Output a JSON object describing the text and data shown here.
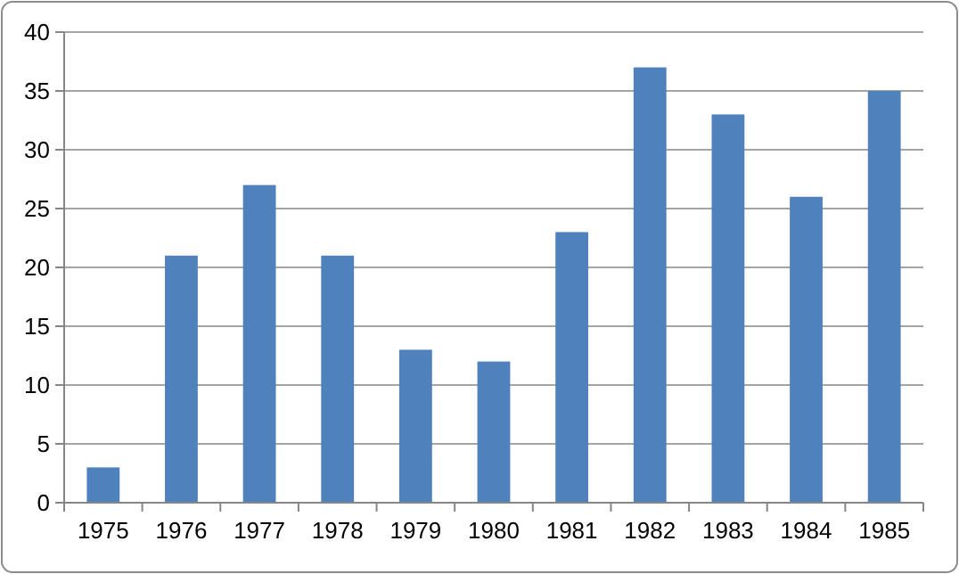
{
  "chart_data": {
    "type": "bar",
    "categories": [
      "1975",
      "1976",
      "1977",
      "1978",
      "1979",
      "1980",
      "1981",
      "1982",
      "1983",
      "1984",
      "1985"
    ],
    "values": [
      3,
      21,
      27,
      21,
      13,
      12,
      23,
      37,
      33,
      26,
      35
    ],
    "color": "#4f81bd",
    "ylim": [
      0,
      40
    ],
    "yticks": [
      0,
      5,
      10,
      15,
      20,
      25,
      30,
      35,
      40
    ],
    "grid": "y"
  }
}
